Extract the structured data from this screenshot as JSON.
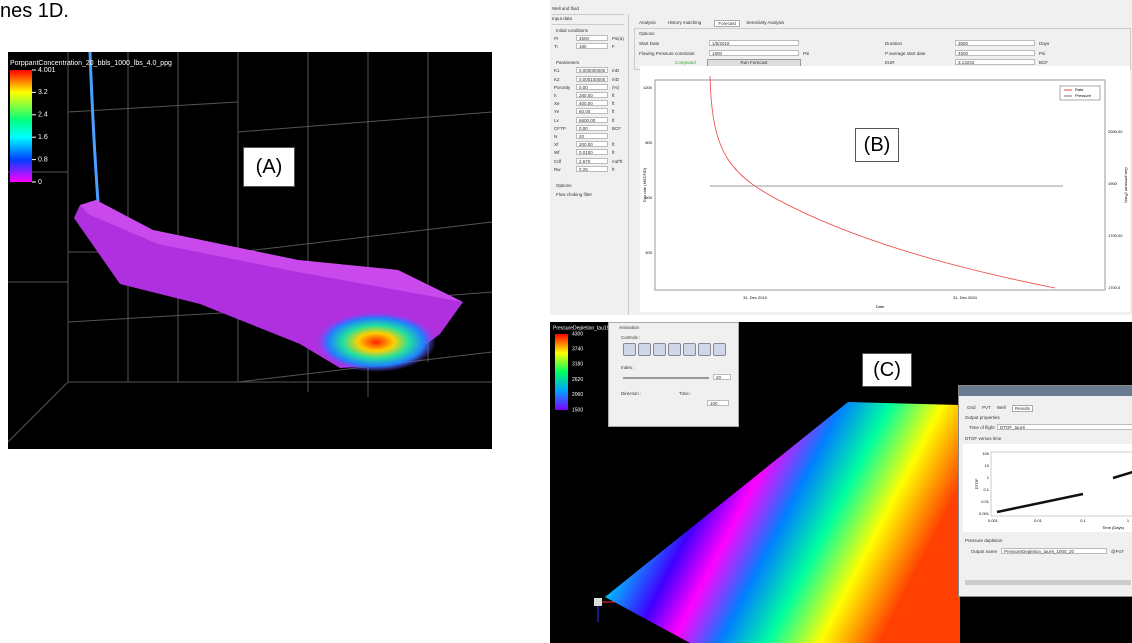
{
  "caption_fragment": "nes 1D.",
  "panel_a": {
    "label": "(A)",
    "title": "PorppantConcentration_20_bbls_1000_lbs_4.0_ppg",
    "colorbar_ticks": [
      "4.001",
      "3.2",
      "2.4",
      "1.6",
      "0.8",
      "0"
    ]
  },
  "panel_b": {
    "label": "(B)",
    "sidebar": [
      "Well and fluid",
      "Input data"
    ],
    "initial_conditions": {
      "title": "Initial conditions",
      "rows": [
        [
          "Pi",
          "4500",
          "Psi(a)"
        ],
        [
          "Ti",
          "180",
          "F"
        ]
      ]
    },
    "parameters": {
      "title": "Parameters",
      "rows": [
        [
          "K1",
          "0.000000000",
          "mD"
        ],
        [
          "K2",
          "0.000100000",
          "mD"
        ],
        [
          "Porosity",
          "0.00",
          "(%)"
        ],
        [
          "h",
          "280.00",
          "ft"
        ],
        [
          "Xe",
          "400.00",
          "ft"
        ],
        [
          "Ye",
          "60.00",
          "ft"
        ],
        [
          "Lx",
          "6600.00",
          "ft"
        ],
        [
          "CFTP",
          "0.00",
          "BCF"
        ],
        [
          "N",
          "20",
          ""
        ],
        [
          "Xf",
          "200.00",
          "ft"
        ],
        [
          "Wf",
          "0.0100",
          "ft"
        ],
        [
          "Cdf",
          "2.670",
          "md*ft"
        ],
        [
          "Rw",
          "0.25",
          "ft"
        ]
      ]
    },
    "options_side": {
      "title": "Options",
      "check": "Flow choking filter"
    },
    "tabs": [
      "Analysis",
      "History matching",
      "Forecast",
      "Sensitivity Analysis"
    ],
    "options": {
      "title": "Options",
      "start_date": [
        "Start Date",
        "1/8/2018"
      ],
      "duration": [
        "Duration",
        "3650",
        "Days"
      ],
      "flowing_pressure": [
        "Flowing Pressure constraint",
        "1800",
        "Psi"
      ],
      "p_average": [
        "P average start date",
        "4500",
        "Psi"
      ],
      "computed": "Computed",
      "run": "Run Forecast",
      "eur": [
        "EUR",
        "3.13233",
        "BCF"
      ]
    },
    "chart": {
      "legend": [
        "Rate",
        "Pressure"
      ],
      "y_left_label": "Gas rate (MSCF/D)",
      "y_right_label": "Gas pressure (Psia)",
      "y_left_ticks": [
        "1200",
        "800",
        "600",
        "400"
      ],
      "y_right_ticks": [
        "2000.00",
        "1900",
        "1700.00",
        "1700.0"
      ],
      "x_ticks": [
        "31. Dec 2019",
        "31. Dec 2024"
      ],
      "x_label": "Date"
    }
  },
  "panel_c": {
    "label": "(C)",
    "title": "PressureDepletion_tau15",
    "colorbar_ticks": [
      "4300",
      "3740",
      "3180",
      "2620",
      "2060",
      "1500"
    ],
    "animation": {
      "title": "Animation",
      "controls": "Controls :",
      "index": "Index :",
      "index_value": "20",
      "direction": "Direction :",
      "time": "Time :",
      "time_value": "100"
    },
    "dialog": {
      "tabs": [
        "Grid",
        "PVT",
        "Well",
        "Results"
      ],
      "output_properties": "Output properties",
      "time_of_flight": "Time of flight",
      "tof_value": "DTOF_tauHi",
      "plot_title": "DTOF versus time",
      "y_label": "DTOF",
      "x_label": "Time (Days)",
      "y_ticks": [
        "100",
        "10",
        "1",
        "0.1",
        "0.01",
        "0.001"
      ],
      "x_ticks": [
        "0.001",
        "0.01",
        "0.1",
        "1"
      ],
      "pressure_depletion": "Pressure depletion",
      "output_name": "Output name",
      "output_value": "PressureDepletion_tauHi_1000_20",
      "suffix": "@PoT"
    }
  }
}
